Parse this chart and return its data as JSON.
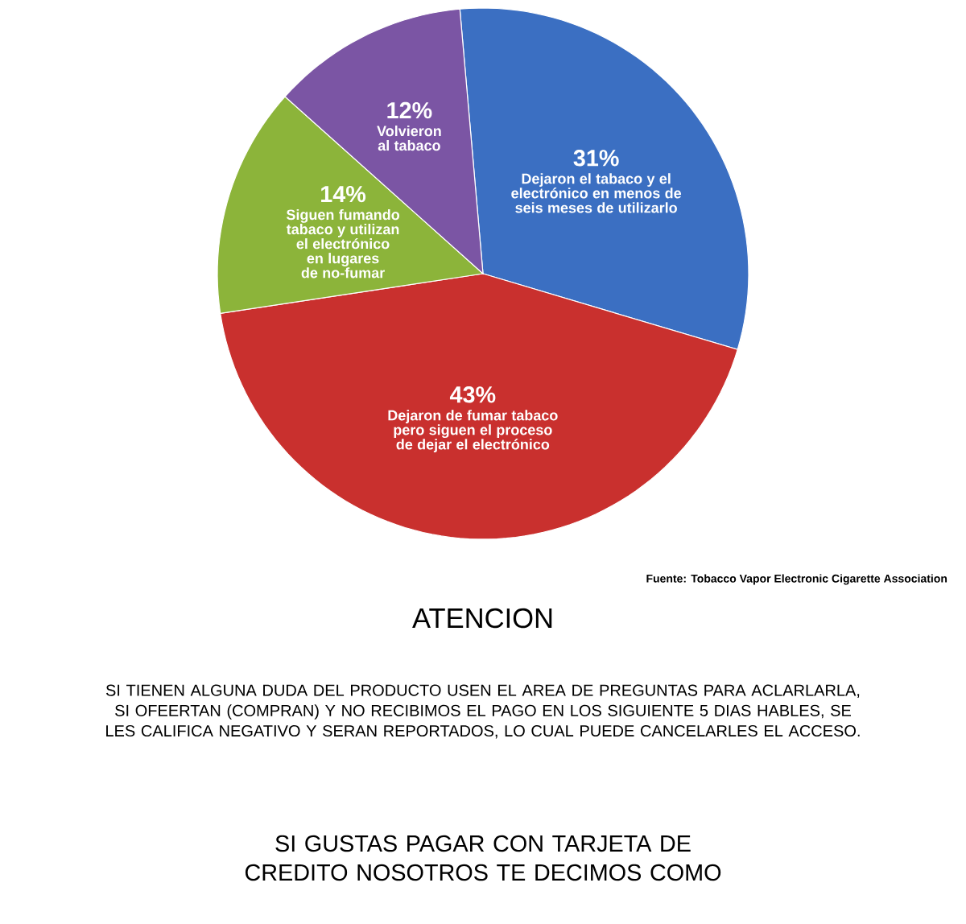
{
  "chart_data": {
    "type": "pie",
    "categories": [
      "Dejaron el tabaco y el electrónico en menos de seis meses de utilizarlo",
      "Dejaron de fumar tabaco pero siguen el proceso de dejar el electrónico",
      "Siguen fumando tabaco y utilizan el electrónico en lugares de no-fumar",
      "Volvieron al tabaco"
    ],
    "values": [
      31,
      43,
      14,
      12
    ],
    "value_labels": [
      "31%",
      "43%",
      "14%",
      "12%"
    ],
    "colors": [
      "#3b6fc2",
      "#c9302e",
      "#8cb43a",
      "#7b55a4"
    ],
    "annotations": [
      "Fuente: Tobacco Vapor Electronic Cigarette Association",
      "ATENCION",
      "SI TIENEN ALGUNA DUDA DEL PRODUCTO USEN EL AREA DE PREGUNTAS PARA ACLARLARLA, SI OFEERTAN (COMPRAN) Y NO RECIBIMOS EL PAGO EN LOS SIGUIENTE 5 DIAS HABLES, SE LES CALIFICA NEGATIVO Y SERAN REPORTADOS, LO CUAL PUEDE CANCELARLES EL ACCESO.",
      "SI GUSTAS PAGAR CON TARJETA DE CREDITO NOSOTROS TE DECIMOS COMO"
    ]
  }
}
